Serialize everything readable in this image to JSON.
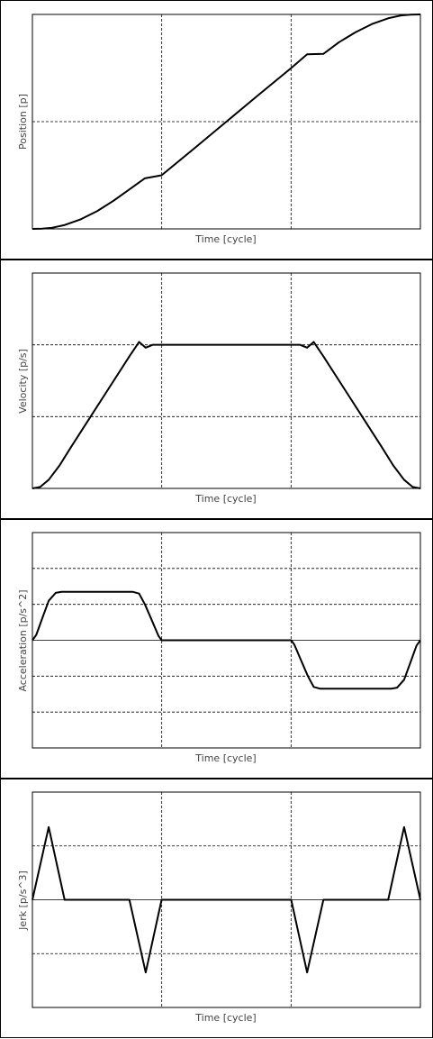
{
  "chart_data": [
    {
      "type": "line",
      "xlabel": "Time [cycle]",
      "ylabel": "Position [p]",
      "x_grid_divisions": 3,
      "y_grid_divisions": 2,
      "ylim": [
        0,
        1
      ],
      "zero_line": false,
      "series": [
        {
          "x": [
            0,
            0.025,
            0.05,
            0.083,
            0.125,
            0.167,
            0.208,
            0.25,
            0.29,
            0.333,
            0.417,
            0.5,
            0.583,
            0.667,
            0.708,
            0.75,
            0.79,
            0.833,
            0.875,
            0.917,
            0.95,
            0.975,
            1
          ],
          "y": [
            0,
            0.001,
            0.005,
            0.018,
            0.045,
            0.083,
            0.13,
            0.184,
            0.236,
            0.25,
            0.375,
            0.5,
            0.625,
            0.75,
            0.814,
            0.816,
            0.87,
            0.917,
            0.955,
            0.982,
            0.995,
            0.999,
            1
          ]
        }
      ]
    },
    {
      "type": "line",
      "xlabel": "Time [cycle]",
      "ylabel": "Velocity [p/s]",
      "x_grid_divisions": 3,
      "y_grid_divisions": 3,
      "ylim": [
        0,
        1.5
      ],
      "zero_line": false,
      "series": [
        {
          "x": [
            0,
            0.02,
            0.042,
            0.07,
            0.1,
            0.15,
            0.2,
            0.25,
            0.275,
            0.292,
            0.31,
            0.333,
            0.5,
            0.667,
            0.69,
            0.708,
            0.725,
            0.75,
            0.8,
            0.85,
            0.9,
            0.93,
            0.958,
            0.98,
            1
          ],
          "y": [
            0,
            0.01,
            0.06,
            0.16,
            0.29,
            0.5,
            0.71,
            0.92,
            1.02,
            0.98,
            1.0,
            1.0,
            1.0,
            1.0,
            1.0,
            0.98,
            1.02,
            0.92,
            0.71,
            0.5,
            0.29,
            0.16,
            0.06,
            0.01,
            0
          ]
        }
      ]
    },
    {
      "type": "line",
      "xlabel": "Time [cycle]",
      "ylabel": "Acceleration [p/s^2]",
      "x_grid_divisions": 3,
      "y_grid_divisions": 6,
      "ylim": [
        -3,
        3
      ],
      "zero_line": true,
      "series": [
        {
          "x": [
            0,
            0.01,
            0.025,
            0.042,
            0.06,
            0.075,
            0.1,
            0.2,
            0.258,
            0.275,
            0.29,
            0.31,
            0.325,
            0.333,
            0.5,
            0.667,
            0.675,
            0.69,
            0.71,
            0.725,
            0.742,
            0.8,
            0.9,
            0.925,
            0.94,
            0.958,
            0.975,
            0.99,
            1
          ],
          "y": [
            0,
            0.15,
            0.6,
            1.1,
            1.32,
            1.35,
            1.35,
            1.35,
            1.35,
            1.3,
            1.0,
            0.5,
            0.12,
            0,
            0,
            0,
            -0.12,
            -0.5,
            -1.0,
            -1.3,
            -1.35,
            -1.35,
            -1.35,
            -1.35,
            -1.32,
            -1.1,
            -0.6,
            -0.15,
            0
          ]
        }
      ]
    },
    {
      "type": "line",
      "xlabel": "Time [cycle]",
      "ylabel": "Jerk [p/s^3]",
      "x_grid_divisions": 3,
      "y_grid_divisions": 4,
      "ylim": [
        -2,
        2
      ],
      "zero_line": true,
      "series": [
        {
          "x": [
            0,
            0.042,
            0.083,
            0.25,
            0.292,
            0.333,
            0.667,
            0.708,
            0.75,
            0.917,
            0.958,
            1
          ],
          "y": [
            0,
            1.35,
            0,
            0,
            -1.35,
            0,
            0,
            -1.35,
            0,
            0,
            1.35,
            0
          ]
        }
      ]
    }
  ]
}
